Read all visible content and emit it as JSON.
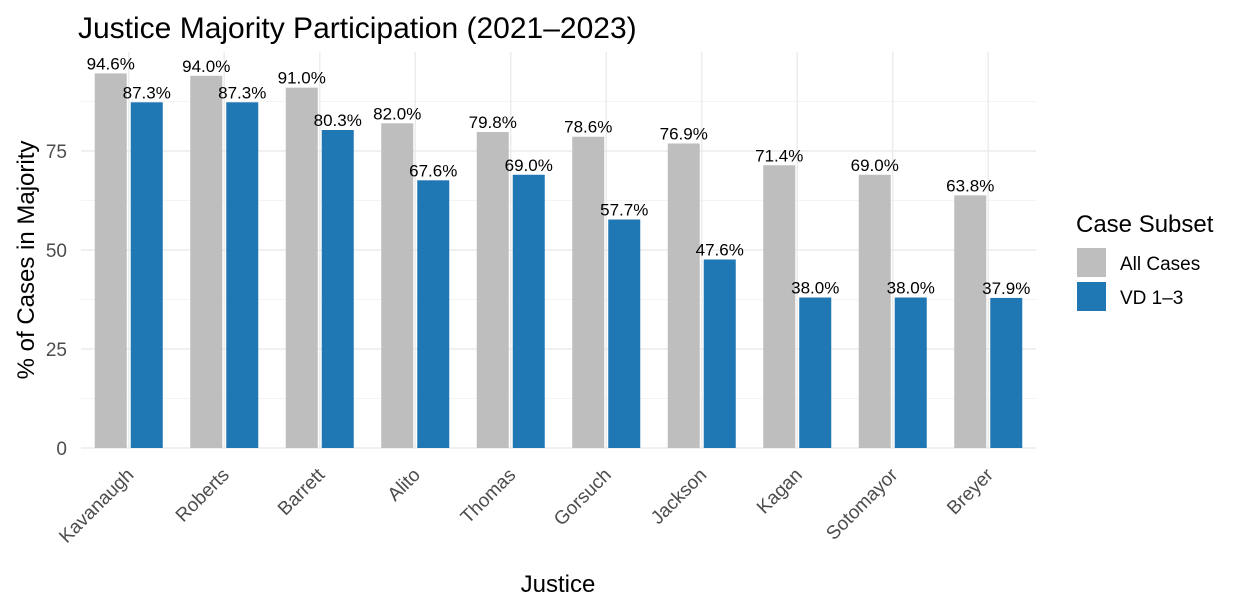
{
  "chart_data": {
    "type": "bar",
    "title": "Justice Majority Participation (2021–2023)",
    "xlabel": "Justice",
    "ylabel": "% of Cases in Majority",
    "ylim": [
      0,
      100
    ],
    "yticks": [
      0,
      25,
      50,
      75
    ],
    "grid": true,
    "legend": {
      "title": "Case Subset",
      "placement": "right"
    },
    "categories": [
      "Kavanaugh",
      "Roberts",
      "Barrett",
      "Alito",
      "Thomas",
      "Gorsuch",
      "Jackson",
      "Kagan",
      "Sotomayor",
      "Breyer"
    ],
    "series": [
      {
        "name": "All Cases",
        "color": "#bebebe",
        "values": [
          94.6,
          94.0,
          91.0,
          82.0,
          79.8,
          78.6,
          76.9,
          71.4,
          69.0,
          63.8
        ],
        "labels": [
          "94.6%",
          "94.0%",
          "91.0%",
          "82.0%",
          "79.8%",
          "78.6%",
          "76.9%",
          "71.4%",
          "69.0%",
          "63.8%"
        ]
      },
      {
        "name": "VD 1–3",
        "color": "#1f77b4",
        "values": [
          87.3,
          87.3,
          80.3,
          67.6,
          69.0,
          57.7,
          47.6,
          38.0,
          38.0,
          37.9
        ],
        "labels": [
          "87.3%",
          "87.3%",
          "80.3%",
          "67.6%",
          "69.0%",
          "57.7%",
          "47.6%",
          "38.0%",
          "38.0%",
          "37.9%"
        ]
      }
    ]
  }
}
